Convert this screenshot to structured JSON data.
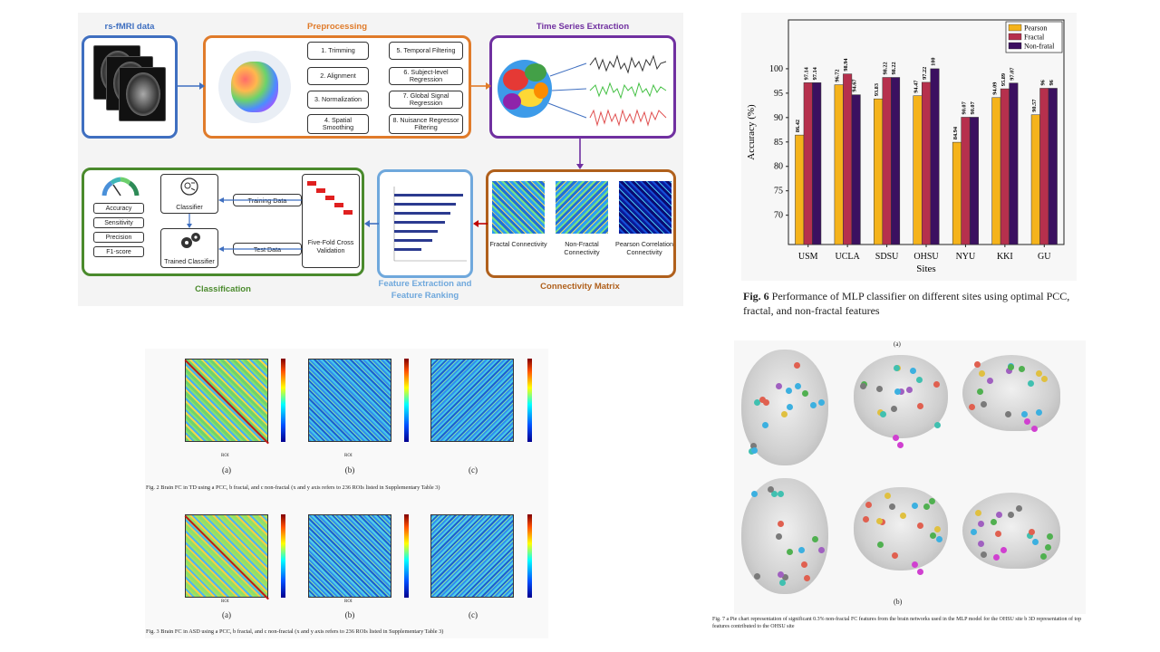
{
  "pipeline": {
    "stages": {
      "rsfmri": "rs-fMRI data",
      "preprocessing": "Preprocessing",
      "time_series": "Time Series Extraction",
      "connectivity": "Connectivity Matrix",
      "feature": "Feature Extraction and Feature Ranking",
      "classification": "Classification"
    },
    "colors": {
      "blue": "#3f6fc0",
      "orange": "#e07b2a",
      "purple": "#7030a0",
      "brown": "#b0601c",
      "lightblue": "#6fa8dc",
      "green": "#4a8a2c"
    },
    "preprocessing_steps": [
      "1. Trimming",
      "2. Alignment",
      "3. Normalization",
      "4. Spatial Smoothing",
      "5. Temporal Filtering",
      "6. Subject-level Regression",
      "7. Global Signal Regression",
      "8. Nuisance Regressor Filtering"
    ],
    "matrices": [
      "Fractal Connectivity",
      "Non-Fractal Connectivity",
      "Pearson Correlation Connectivity"
    ],
    "cv": "Five-Fold Cross Validation",
    "training_data": "Training Data",
    "test_data": "Test Data",
    "classifier": "Classifier",
    "trained_classifier": "Trained Classifier",
    "metrics": [
      "Accuracy",
      "Sensitivity",
      "Precision",
      "F1-score"
    ]
  },
  "fc_figures": {
    "panel_labels": [
      "(a)",
      "(b)",
      "(c)"
    ],
    "axis_label": "ROI",
    "fig2_caption": "Fig. 2  Brain FC in TD using a PCC, b fractal, and c non-fractal (x and y axis refers to 236 ROIs listed in Supplementary Table 3)",
    "fig3_caption": "Fig. 3  Brain FC in ASD using a PCC, b fractal, and c non-fractal (x and y axis refers to 236 ROIs listed in Supplementary Table 3)"
  },
  "chart_data": {
    "type": "bar",
    "categories": [
      "USM",
      "UCLA",
      "SDSU",
      "OHSU",
      "NYU",
      "KKI",
      "GU"
    ],
    "series": [
      {
        "name": "Pearson",
        "color": "#f5b31b",
        "values": [
          86.42,
          96.72,
          93.83,
          94.47,
          84.94,
          94.09,
          90.57
        ]
      },
      {
        "name": "Fractal",
        "color": "#b6304d",
        "values": [
          97.14,
          98.94,
          98.22,
          97.22,
          90.07,
          95.89,
          96
        ]
      },
      {
        "name": "Non-fratal",
        "color": "#3b1060",
        "values": [
          97.14,
          94.67,
          98.22,
          100,
          90.07,
          97.07,
          96
        ]
      }
    ],
    "xlabel": "Sites",
    "ylabel": "Accuracy (%)",
    "ylim": [
      64,
      110
    ],
    "yticks": [
      70,
      75,
      80,
      85,
      90,
      95,
      100
    ],
    "legend": "top-right"
  },
  "fig6_caption": {
    "label": "Fig. 6",
    "text": "  Performance of MLP classifier on different sites using optimal PCC, fractal, and non-fractal features"
  },
  "fig7": {
    "label_a": "(a)",
    "label_b": "(b)",
    "caption": "Fig. 7  a Pie chart representation of significant 0.3% non-fractal FC features from the brain networks used in the MLP model for the OHSU site b 3D representation of top features contributed to the OHSU site"
  }
}
